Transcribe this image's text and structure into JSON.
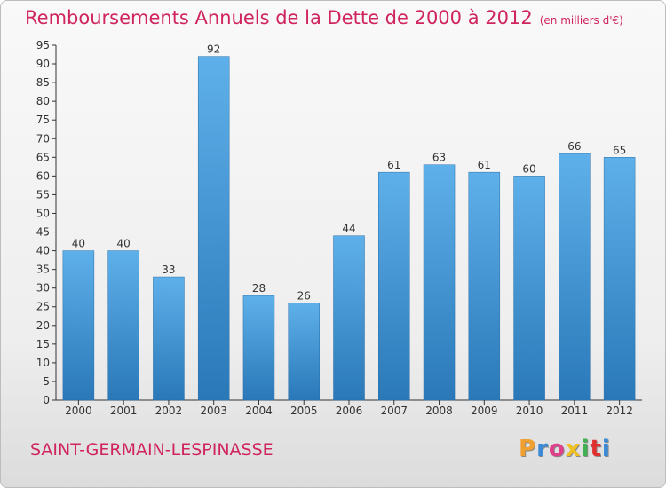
{
  "header": {
    "title": "Remboursements Annuels de la Dette de 2000 à 2012",
    "subtitle": "(en milliers d'€)"
  },
  "footer": {
    "commune": "SAINT-GERMAIN-LESPINASSE",
    "logo": "Proxiti"
  },
  "colors": {
    "title": "#d0245e",
    "bar_top": "#5eb0ea",
    "bar_bottom": "#2a78b8",
    "logo_letters": [
      "#f0a030",
      "#3a8ad8",
      "#e0408a",
      "#f0c020",
      "#40b050",
      "#e03030",
      "#3a8ad8"
    ]
  },
  "chart_data": {
    "type": "bar",
    "title": "Remboursements Annuels de la Dette de 2000 à 2012",
    "categories": [
      "2000",
      "2001",
      "2002",
      "2003",
      "2004",
      "2005",
      "2006",
      "2007",
      "2008",
      "2009",
      "2010",
      "2011",
      "2012"
    ],
    "values": [
      40,
      40,
      33,
      92,
      28,
      26,
      44,
      61,
      63,
      61,
      60,
      66,
      65
    ],
    "ylim": [
      0,
      95
    ],
    "yticks": [
      0,
      5,
      10,
      15,
      20,
      25,
      30,
      35,
      40,
      45,
      50,
      55,
      60,
      65,
      70,
      75,
      80,
      85,
      90,
      95
    ],
    "grid": false,
    "data_labels": true
  }
}
